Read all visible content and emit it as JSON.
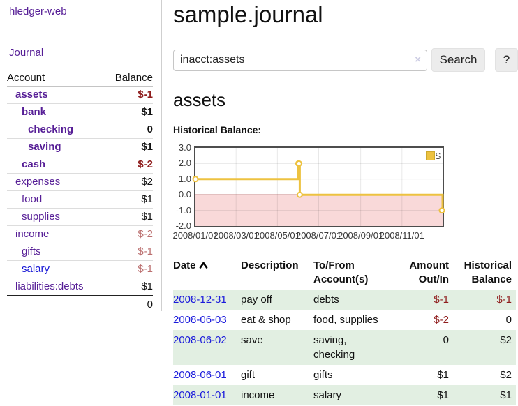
{
  "app": {
    "title": "hledger-web"
  },
  "sidebar": {
    "journal_link": "Journal",
    "table": {
      "account_header": "Account",
      "balance_header": "Balance",
      "accounts": [
        {
          "name": "assets",
          "balance": "$-1"
        },
        {
          "name": "bank",
          "balance": "$1"
        },
        {
          "name": "checking",
          "balance": "0"
        },
        {
          "name": "saving",
          "balance": "$1"
        },
        {
          "name": "cash",
          "balance": "$-2"
        },
        {
          "name": "expenses",
          "balance": "$2"
        },
        {
          "name": "food",
          "balance": "$1"
        },
        {
          "name": "supplies",
          "balance": "$1"
        },
        {
          "name": "income",
          "balance": "$-2"
        },
        {
          "name": "gifts",
          "balance": "$-1"
        },
        {
          "name": "salary",
          "balance": "$-1"
        },
        {
          "name": "liabilities:debts",
          "balance": "$1"
        }
      ],
      "total": "0"
    }
  },
  "header": {
    "title": "sample.journal"
  },
  "search": {
    "value": "inacct:assets",
    "clear_icon": "×",
    "button_label": "Search",
    "help_label": "?"
  },
  "main": {
    "account_heading": "assets",
    "chart_heading": "Historical Balance:"
  },
  "chart_data": {
    "type": "line",
    "step": true,
    "title": "Historical Balance",
    "series": [
      {
        "name": "$",
        "color": "#edc240",
        "points": [
          [
            "2008-01-01",
            1
          ],
          [
            "2008-06-01",
            2
          ],
          [
            "2008-06-02",
            2
          ],
          [
            "2008-06-03",
            0
          ],
          [
            "2008-12-31",
            -1
          ]
        ]
      }
    ],
    "x_range": [
      "2008-01-01",
      "2008-12-31"
    ],
    "x_ticks": [
      "2008/01/01",
      "2008/03/01",
      "2008/05/01",
      "2008/07/01",
      "2008/09/01",
      "2008/11/01"
    ],
    "y_ticks": [
      3.0,
      2.0,
      1.0,
      0.0,
      -1.0,
      -2.0
    ],
    "ylim": [
      -2,
      3
    ],
    "grid": true,
    "legend_position": "top-right",
    "legend": {
      "label": "$",
      "swatch_color": "#edc240"
    },
    "negative_region_color": "#f9d9d9",
    "zero_line_color": "#8b0000"
  },
  "register": {
    "headers": {
      "date": "Date",
      "description": "Description",
      "accounts": "To/From Account(s)",
      "amount": "Amount Out/In",
      "balance": "Historical Balance",
      "sort": "ascending"
    },
    "rows": [
      {
        "date": "2008-12-31",
        "description": "pay off",
        "accounts": "debts",
        "amount": "$-1",
        "balance": "$-1"
      },
      {
        "date": "2008-06-03",
        "description": "eat & shop",
        "accounts": "food, supplies",
        "amount": "$-2",
        "balance": "0"
      },
      {
        "date": "2008-06-02",
        "description": "save",
        "accounts": "saving, checking",
        "amount": "0",
        "balance": "$2"
      },
      {
        "date": "2008-06-01",
        "description": "gift",
        "accounts": "gifts",
        "amount": "$1",
        "balance": "$2"
      },
      {
        "date": "2008-01-01",
        "description": "income",
        "accounts": "salary",
        "amount": "$1",
        "balance": "$1"
      }
    ]
  },
  "colors": {
    "link_purple": "#561e96",
    "link_blue": "#1717d6",
    "negative_strong": "#8f1d1d",
    "negative_muted": "#bb6f6f",
    "row_green": "#e2efe2",
    "series_yellow": "#edc240"
  }
}
